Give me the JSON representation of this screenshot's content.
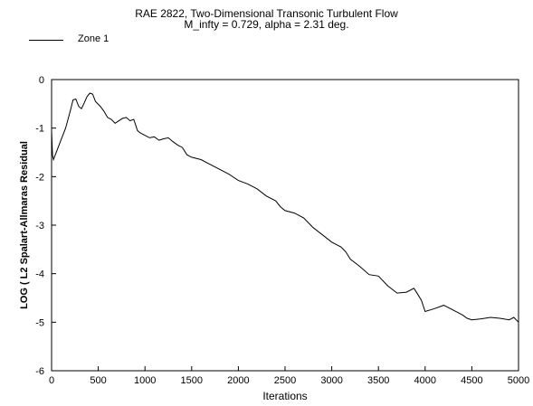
{
  "title": "RAE 2822, Two-Dimensional Transonic Turbulent Flow",
  "subtitle": "M_infty = 0.729, alpha = 2.31 deg.",
  "legend": {
    "label": "Zone   1"
  },
  "colors": {
    "line": "#000000",
    "axis": "#000000",
    "background": "#ffffff"
  },
  "chart_data": {
    "type": "line",
    "title": "RAE 2822, Two-Dimensional Transonic Turbulent Flow",
    "subtitle": "M_infty = 0.729, alpha = 2.31 deg.",
    "xlabel": "Iterations",
    "ylabel": "LOG ( L2 Spalart-Allmaras Residual",
    "xlim": [
      0,
      5000
    ],
    "ylim": [
      -6,
      0
    ],
    "xticks": [
      0,
      500,
      1000,
      1500,
      2000,
      2500,
      3000,
      3500,
      4000,
      4500,
      5000
    ],
    "yticks": [
      0,
      -1,
      -2,
      -3,
      -4,
      -5,
      -6
    ],
    "grid": false,
    "legend_position": "top-left",
    "series": [
      {
        "name": "Zone   1",
        "x": [
          0,
          10,
          20,
          40,
          60,
          100,
          150,
          200,
          230,
          260,
          290,
          320,
          350,
          380,
          410,
          440,
          470,
          520,
          560,
          600,
          640,
          680,
          720,
          760,
          800,
          840,
          880,
          920,
          950,
          1000,
          1050,
          1100,
          1150,
          1200,
          1250,
          1300,
          1350,
          1400,
          1450,
          1500,
          1600,
          1700,
          1800,
          1900,
          2000,
          2100,
          2200,
          2300,
          2400,
          2450,
          2500,
          2600,
          2700,
          2800,
          2900,
          3000,
          3100,
          3150,
          3200,
          3300,
          3400,
          3500,
          3600,
          3700,
          3800,
          3880,
          3920,
          3960,
          4000,
          4100,
          4200,
          4300,
          4350,
          4400,
          4450,
          4500,
          4600,
          4700,
          4800,
          4900,
          4950,
          5000
        ],
        "y": [
          -1.05,
          -1.55,
          -1.65,
          -1.55,
          -1.45,
          -1.25,
          -1.0,
          -0.65,
          -0.42,
          -0.4,
          -0.55,
          -0.6,
          -0.48,
          -0.35,
          -0.28,
          -0.3,
          -0.45,
          -0.55,
          -0.65,
          -0.78,
          -0.82,
          -0.9,
          -0.85,
          -0.8,
          -0.78,
          -0.85,
          -0.82,
          -1.05,
          -1.1,
          -1.15,
          -1.2,
          -1.18,
          -1.25,
          -1.22,
          -1.2,
          -1.28,
          -1.35,
          -1.4,
          -1.55,
          -1.6,
          -1.65,
          -1.75,
          -1.85,
          -1.95,
          -2.08,
          -2.15,
          -2.25,
          -2.4,
          -2.5,
          -2.62,
          -2.7,
          -2.75,
          -2.85,
          -3.05,
          -3.2,
          -3.35,
          -3.45,
          -3.55,
          -3.7,
          -3.85,
          -4.02,
          -4.05,
          -4.25,
          -4.4,
          -4.38,
          -4.3,
          -4.42,
          -4.55,
          -4.78,
          -4.72,
          -4.65,
          -4.75,
          -4.8,
          -4.85,
          -4.92,
          -4.95,
          -4.93,
          -4.9,
          -4.92,
          -4.95,
          -4.9,
          -5.0
        ]
      }
    ]
  }
}
